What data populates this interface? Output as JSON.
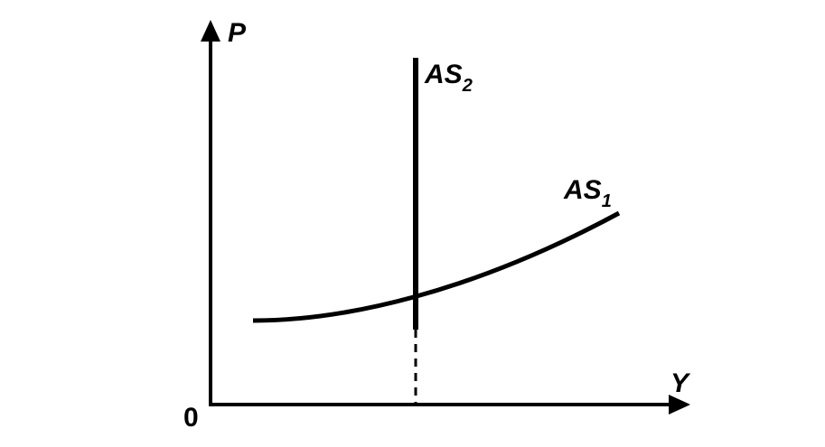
{
  "axes": {
    "y_label": "P",
    "x_label": "Y",
    "origin": "0"
  },
  "curves": [
    {
      "label": "AS",
      "subscript": "2"
    },
    {
      "label": "AS",
      "subscript": "1"
    }
  ]
}
